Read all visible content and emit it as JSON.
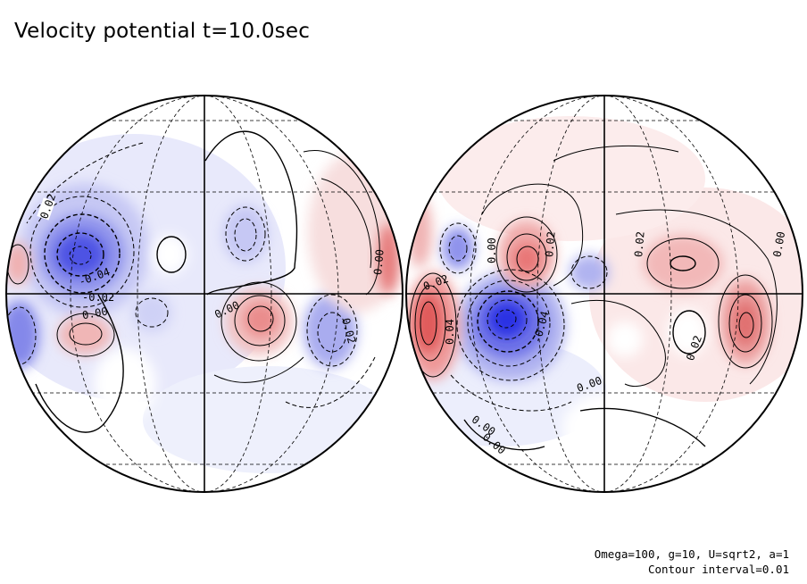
{
  "title": "Velocity potential t=10.0sec",
  "parameters": "Omega=100, g=10, U=sqrt2, a=1",
  "contour_interval_text": "Contour interval=0.01",
  "colors": {
    "positive": "#e03030",
    "negative": "#1010e0",
    "zero": "#ffffff"
  },
  "contour_labels": {
    "left": [
      "0.02",
      "-0.04",
      "-0.02",
      "0.00",
      "0.00",
      "0.00",
      "0.02"
    ],
    "right": [
      "0.00",
      "0.02",
      "0.02",
      "0.00",
      "0.02",
      "-0.04",
      "0.00",
      "0.02",
      "0.00",
      "0.00",
      "0.04"
    ]
  }
}
